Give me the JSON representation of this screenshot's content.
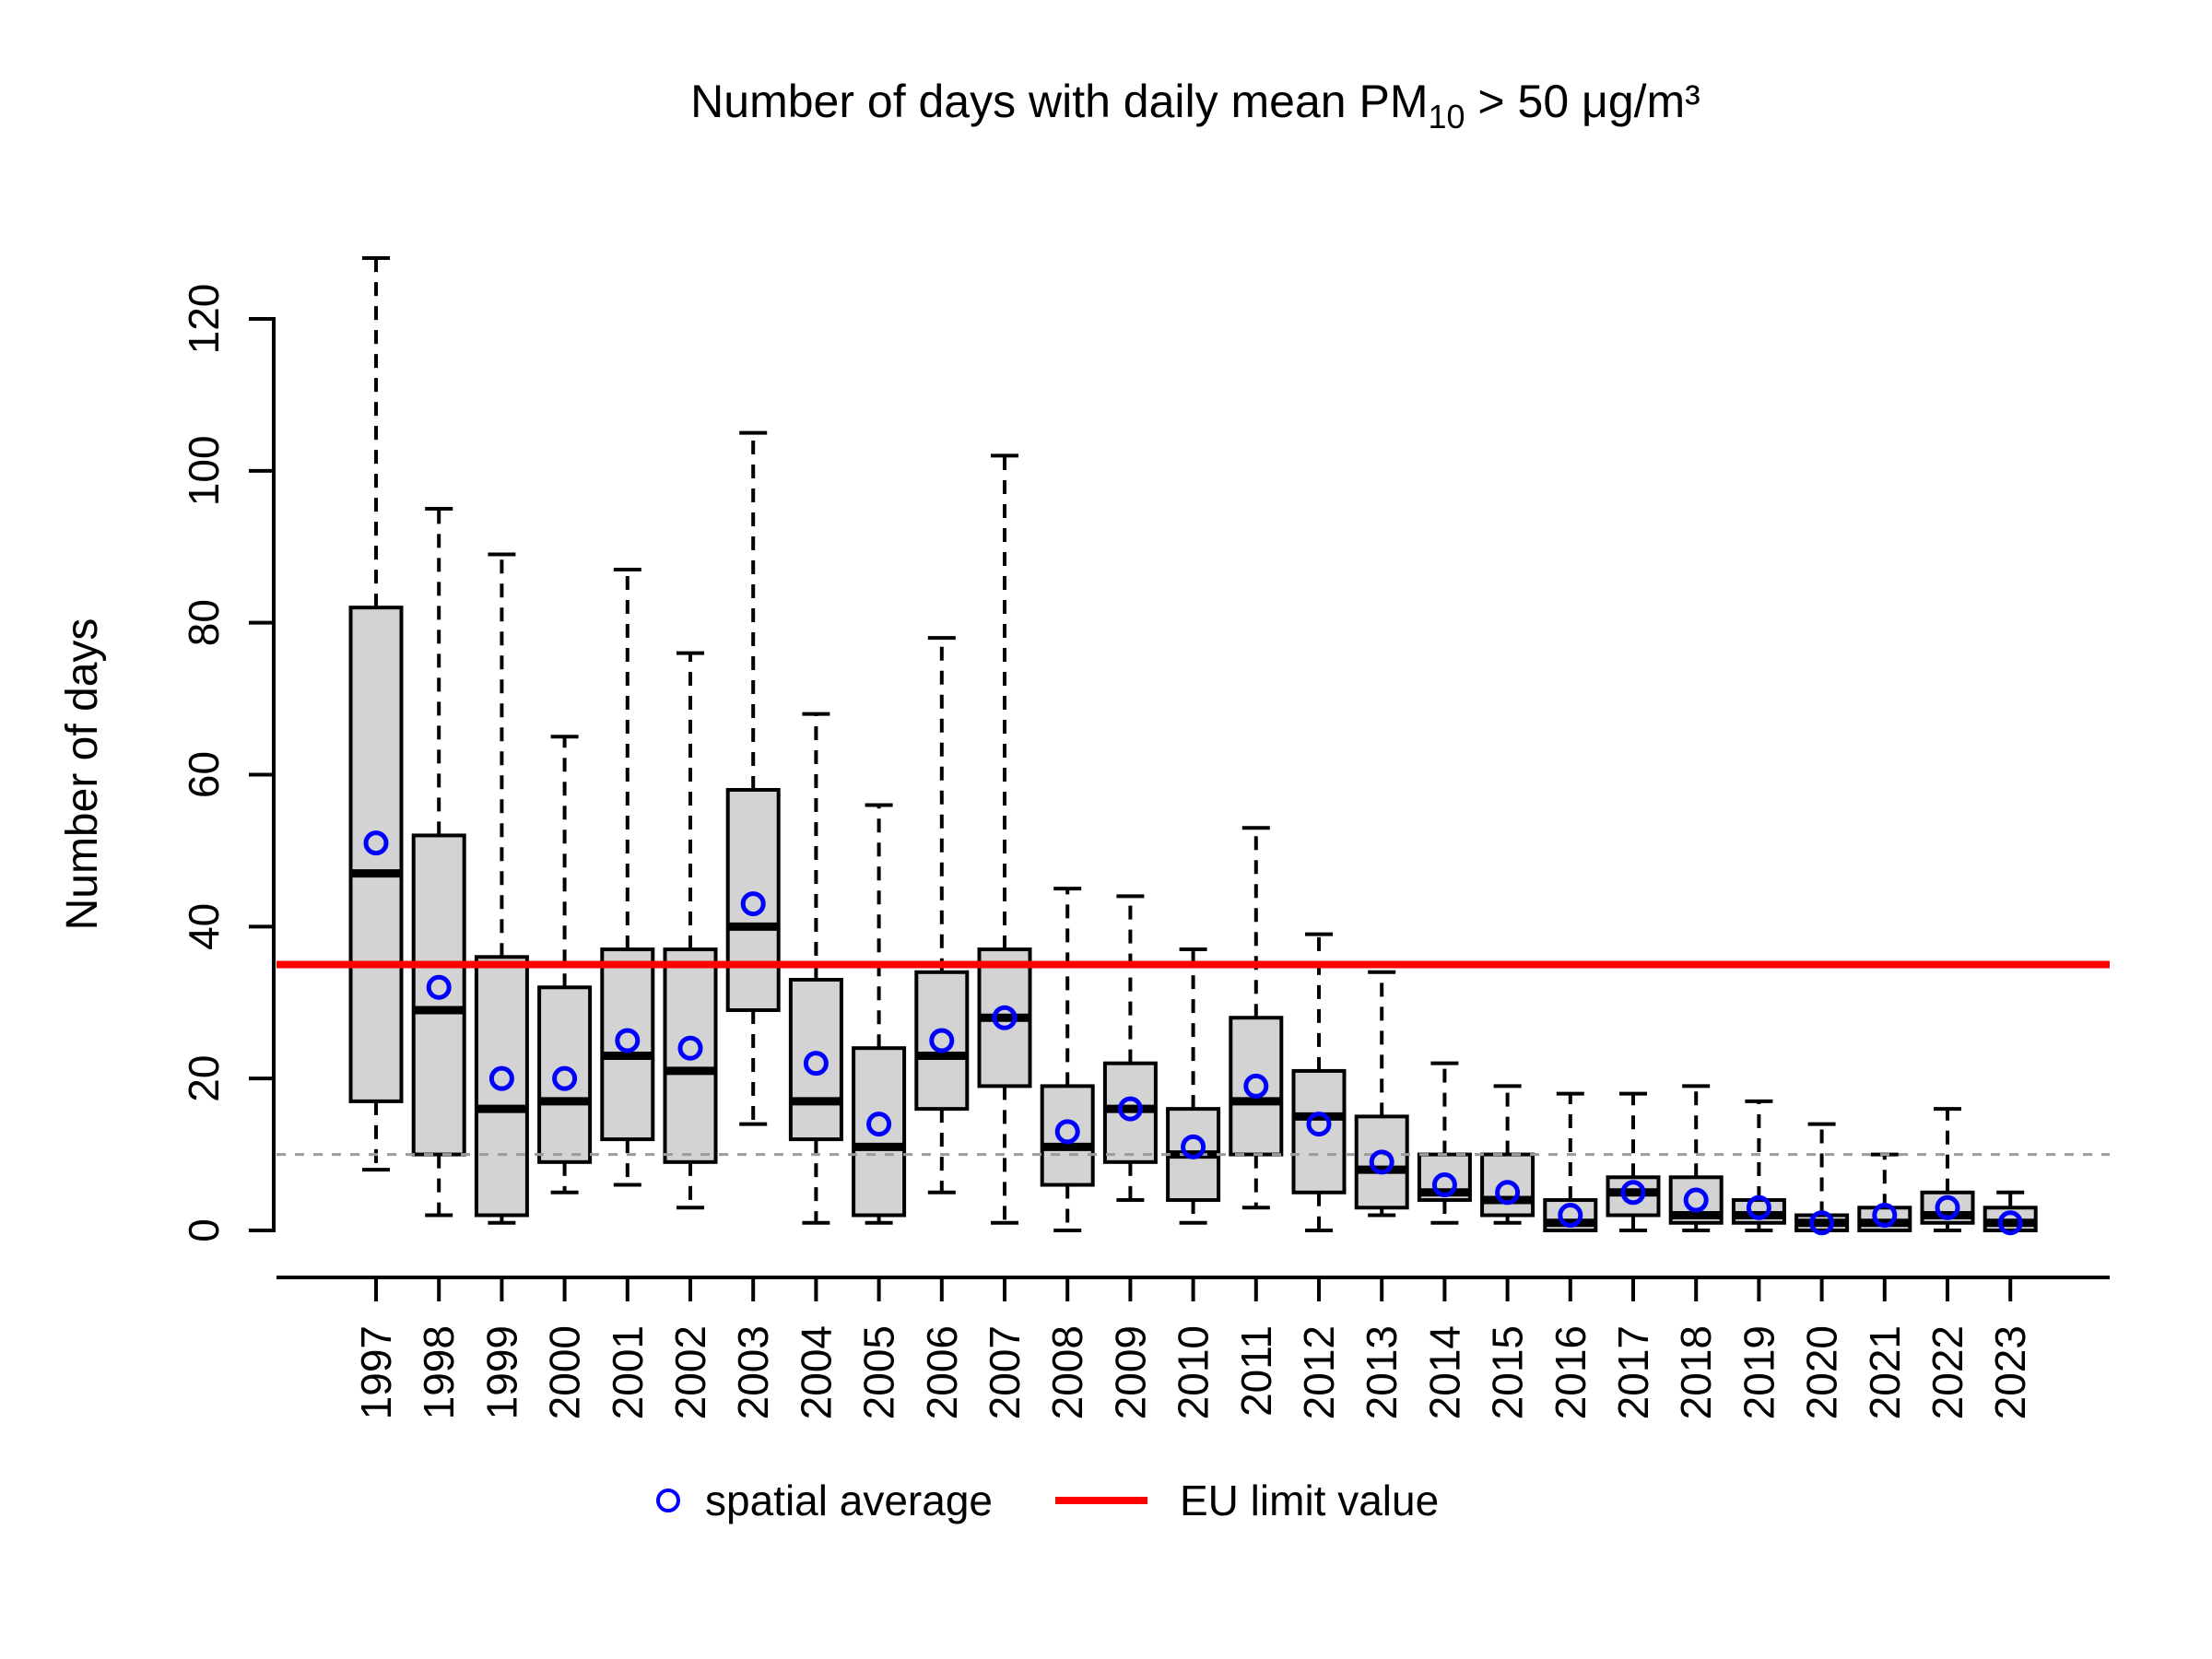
{
  "title": {
    "prefix": "Number of days with daily mean PM",
    "subscript": "10",
    "suffix": " > 50 μg/m³"
  },
  "y_axis": {
    "label": "Number of days",
    "ticks": [
      0,
      20,
      40,
      60,
      80,
      100,
      120
    ]
  },
  "legend": {
    "items": [
      {
        "symbol": "open-circle",
        "color": "#0000ff",
        "label": "spatial average"
      },
      {
        "symbol": "line",
        "color": "#ff0000",
        "label": "EU limit value"
      }
    ]
  },
  "colors": {
    "box_fill": "#d3d3d3",
    "box_stroke": "#000000",
    "mean_marker": "#0000ff",
    "eu_limit_line": "#ff0000",
    "minor_ref_line": "#9b9b9b",
    "text": "#000000"
  },
  "chart_data": {
    "type": "boxplot",
    "title": "Number of days with daily mean PM10 > 50 µg/m³",
    "xlabel": "",
    "ylabel": "Number of days",
    "ylim": [
      0,
      130
    ],
    "y_ticks": [
      0,
      20,
      40,
      60,
      80,
      100,
      120
    ],
    "grid": false,
    "legend_position": "bottom",
    "categories": [
      1997,
      1998,
      1999,
      2000,
      2001,
      2002,
      2003,
      2004,
      2005,
      2006,
      2007,
      2008,
      2009,
      2010,
      2011,
      2012,
      2013,
      2014,
      2015,
      2016,
      2017,
      2018,
      2019,
      2020,
      2021,
      2022,
      2023
    ],
    "series": [
      {
        "name": "whisker_low",
        "values": [
          8,
          2,
          1,
          5,
          6,
          3,
          14,
          1,
          1,
          5,
          1,
          0,
          4,
          1,
          3,
          0,
          2,
          1,
          1,
          0,
          0,
          0,
          0,
          0,
          0,
          0,
          0
        ]
      },
      {
        "name": "q1",
        "values": [
          17,
          10,
          2,
          9,
          12,
          9,
          29,
          12,
          2,
          16,
          19,
          6,
          9,
          4,
          10,
          5,
          3,
          4,
          2,
          0,
          2,
          1,
          1,
          0,
          0,
          1,
          0
        ]
      },
      {
        "name": "median",
        "values": [
          47,
          29,
          16,
          17,
          23,
          21,
          40,
          17,
          11,
          23,
          28,
          11,
          16,
          10,
          17,
          15,
          8,
          5,
          4,
          1,
          5,
          2,
          2,
          1,
          1,
          2,
          1
        ]
      },
      {
        "name": "q3",
        "values": [
          82,
          52,
          36,
          32,
          37,
          37,
          58,
          33,
          24,
          34,
          37,
          19,
          22,
          16,
          28,
          21,
          15,
          10,
          10,
          4,
          7,
          7,
          4,
          2,
          3,
          5,
          3
        ]
      },
      {
        "name": "whisker_high",
        "values": [
          128,
          95,
          89,
          65,
          87,
          76,
          105,
          68,
          56,
          78,
          102,
          45,
          44,
          37,
          53,
          39,
          34,
          22,
          19,
          18,
          18,
          19,
          17,
          14,
          10,
          16,
          5
        ]
      },
      {
        "name": "spatial_average",
        "values": [
          51,
          32,
          20,
          20,
          25,
          24,
          43,
          22,
          14,
          25,
          28,
          13,
          16,
          11,
          19,
          14,
          9,
          6,
          5,
          2,
          5,
          4,
          3,
          1,
          2,
          3,
          1
        ]
      }
    ],
    "reference_lines": [
      {
        "name": "EU limit value",
        "value": 35,
        "color": "#ff0000",
        "style": "solid"
      },
      {
        "name": "minor reference",
        "value": 10,
        "color": "#9b9b9b",
        "style": "dashed"
      }
    ]
  }
}
